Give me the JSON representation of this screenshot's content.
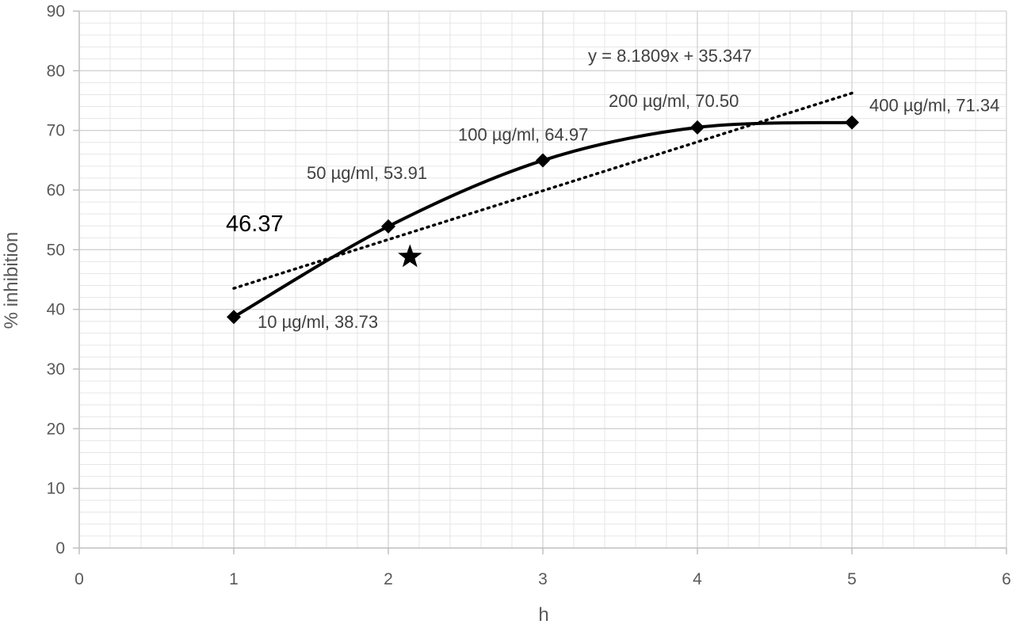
{
  "chart_data": {
    "type": "line",
    "title": "",
    "xlabel": "h",
    "ylabel": "% inhibition",
    "xlim": [
      0,
      6
    ],
    "ylim": [
      0,
      90
    ],
    "x_ticks": [
      "0",
      "1",
      "2",
      "3",
      "4",
      "5",
      "6"
    ],
    "y_ticks": [
      "0",
      "10",
      "20",
      "30",
      "40",
      "50",
      "60",
      "70",
      "80",
      "90"
    ],
    "grid": true,
    "legend": "none",
    "series": [
      {
        "x": [
          1,
          2,
          3,
          4,
          5
        ],
        "y": [
          38.73,
          53.91,
          64.97,
          70.5,
          71.34
        ],
        "marker": "diamond",
        "line": "smooth-solid",
        "color": "#000000",
        "point_labels": [
          "10 µg/ml, 38.73",
          "50 µg/ml, 53.91",
          "100 µg/ml, 64.97",
          "200 µg/ml, 70.50",
          "400 µg/ml, 71.34"
        ]
      }
    ],
    "trendline": {
      "type": "linear",
      "slope": 8.1809,
      "intercept": 35.347,
      "x_range": [
        1,
        5
      ],
      "style": "dotted",
      "color": "#000000",
      "equation_label": "y = 8.1809x + 35.347"
    },
    "annotations": [
      {
        "type": "text",
        "text": "46.37"
      },
      {
        "type": "star-marker",
        "x": 2.14,
        "y": 48.8,
        "color": "#000000"
      }
    ]
  }
}
